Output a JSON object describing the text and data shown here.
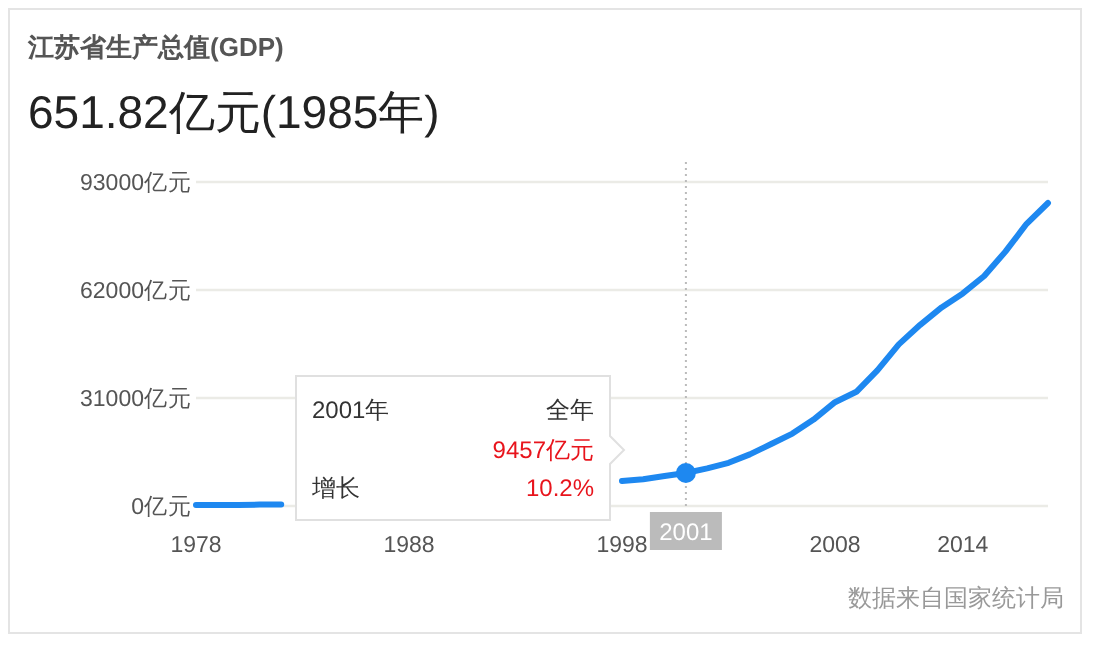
{
  "chart_data": {
    "type": "line",
    "title": "江苏省生产总值(GDP)",
    "subtitle": "651.82亿元(1985年)",
    "series": [
      {
        "x": [
          1978,
          1979,
          1980,
          1981,
          1982
        ],
        "color": "#1e88f0",
        "values": [
          300,
          300,
          300,
          400,
          400
        ]
      },
      {
        "x": [
          1998,
          1999,
          2000,
          2001,
          2002,
          2003,
          2004,
          2005,
          2006,
          2007,
          2008,
          2009,
          2010,
          2011,
          2012,
          2013,
          2014,
          2015,
          2016,
          2017,
          2018
        ],
        "color": "#1e88f0",
        "values": [
          7200,
          7700,
          8600,
          9457,
          10800,
          12400,
          14800,
          17800,
          20800,
          24800,
          29800,
          32800,
          39000,
          46400,
          52000,
          57000,
          61000,
          66000,
          73000,
          81000,
          87000
        ]
      },
      {
        "type": "scatter",
        "marker": "circle",
        "x": [
          2001
        ],
        "color": "#1e88f0",
        "values": [
          9457
        ]
      }
    ],
    "xlim": [
      1978,
      2018
    ],
    "xticks": [
      1978,
      1988,
      1998,
      2008,
      2014
    ],
    "ylim": [
      0,
      93000
    ],
    "yticks": [
      {
        "value": 0,
        "label": "0亿元"
      },
      {
        "value": 31000,
        "label": "31000亿元"
      },
      {
        "value": 62000,
        "label": "62000亿元"
      },
      {
        "value": 93000,
        "label": "93000亿元"
      }
    ],
    "grid": "y",
    "line_style": "solid",
    "ref_lines": [
      {
        "axis": "x",
        "value": 2001,
        "label": "2001",
        "color": "#bbbbbb",
        "line_style": "dotted"
      }
    ],
    "annotations": [
      "2001年",
      "全年",
      "9457亿元",
      "增长",
      "10.2%",
      "数据来自国家统计局"
    ]
  }
}
